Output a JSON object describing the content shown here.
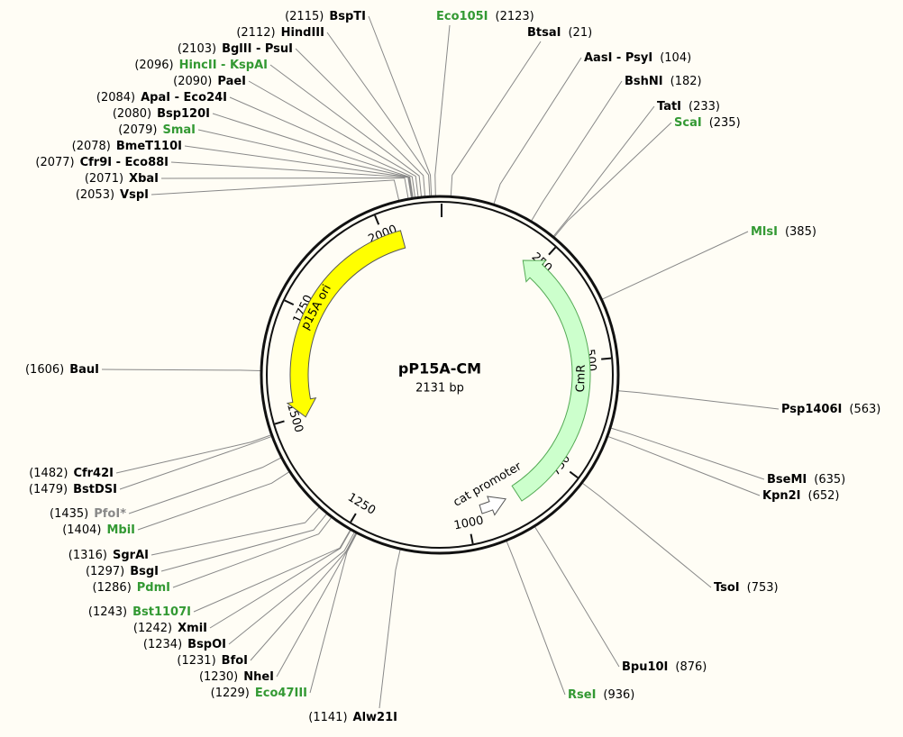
{
  "map": {
    "title": "pP15A-CM",
    "length": {
      "value": 2131,
      "label": "2131 bp"
    },
    "ticks": [
      250,
      500,
      750,
      1000,
      1250,
      1500,
      1750,
      2000
    ],
    "features": [
      {
        "name": "p15A ori",
        "start": 2041,
        "end": 1495,
        "color": "#ffff00"
      },
      {
        "name": "CmR",
        "start": 870,
        "end": 213,
        "color": "#ccffcc"
      },
      {
        "name": "cat promoter",
        "start": 965,
        "end": 900,
        "color": "#ffffff"
      }
    ],
    "sites": [
      {
        "name": "BspTI",
        "position": {
          "value": 2115,
          "label": "(2115)"
        },
        "color": "#000000"
      },
      {
        "name": "HindIII",
        "position": {
          "value": 2112,
          "label": "(2112)"
        },
        "color": "#000000"
      },
      {
        "name": "BglII - PsuI",
        "position": {
          "value": 2103,
          "label": "(2103)"
        },
        "color": "#000000"
      },
      {
        "name": "HincII - KspAI",
        "position": {
          "value": 2096,
          "label": "(2096)"
        },
        "color": "#339933"
      },
      {
        "name": "PaeI",
        "position": {
          "value": 2090,
          "label": "(2090)"
        },
        "color": "#000000"
      },
      {
        "name": "ApaI - Eco24I",
        "position": {
          "value": 2084,
          "label": "(2084)"
        },
        "color": "#000000"
      },
      {
        "name": "Bsp120I",
        "position": {
          "value": 2080,
          "label": "(2080)"
        },
        "color": "#000000"
      },
      {
        "name": "SmaI",
        "position": {
          "value": 2079,
          "label": "(2079)"
        },
        "color": "#339933"
      },
      {
        "name": "BmeT110I",
        "position": {
          "value": 2078,
          "label": "(2078)"
        },
        "color": "#000000"
      },
      {
        "name": "Cfr9I - Eco88I",
        "position": {
          "value": 2077,
          "label": "(2077)"
        },
        "color": "#000000"
      },
      {
        "name": "XbaI",
        "position": {
          "value": 2071,
          "label": "(2071)"
        },
        "color": "#000000"
      },
      {
        "name": "VspI",
        "position": {
          "value": 2053,
          "label": "(2053)"
        },
        "color": "#000000"
      },
      {
        "name": "BauI",
        "position": {
          "value": 1606,
          "label": "(1606)"
        },
        "color": "#000000"
      },
      {
        "name": "Cfr42I",
        "position": {
          "value": 1482,
          "label": "(1482)"
        },
        "color": "#000000"
      },
      {
        "name": "BstDSI",
        "position": {
          "value": 1479,
          "label": "(1479)"
        },
        "color": "#000000"
      },
      {
        "name": "PfoI*",
        "position": {
          "value": 1435,
          "label": "(1435)"
        },
        "color": "#888888"
      },
      {
        "name": "MbiI",
        "position": {
          "value": 1404,
          "label": "(1404)"
        },
        "color": "#339933"
      },
      {
        "name": "SgrAI",
        "position": {
          "value": 1316,
          "label": "(1316)"
        },
        "color": "#000000"
      },
      {
        "name": "BsgI",
        "position": {
          "value": 1297,
          "label": "(1297)"
        },
        "color": "#000000"
      },
      {
        "name": "PdmI",
        "position": {
          "value": 1286,
          "label": "(1286)"
        },
        "color": "#339933"
      },
      {
        "name": "Bst1107I",
        "position": {
          "value": 1243,
          "label": "(1243)"
        },
        "color": "#339933"
      },
      {
        "name": "XmiI",
        "position": {
          "value": 1242,
          "label": "(1242)"
        },
        "color": "#000000"
      },
      {
        "name": "BspOI",
        "position": {
          "value": 1234,
          "label": "(1234)"
        },
        "color": "#000000"
      },
      {
        "name": "BfoI",
        "position": {
          "value": 1231,
          "label": "(1231)"
        },
        "color": "#000000"
      },
      {
        "name": "NheI",
        "position": {
          "value": 1230,
          "label": "(1230)"
        },
        "color": "#000000"
      },
      {
        "name": "Eco47III",
        "position": {
          "value": 1229,
          "label": "(1229)"
        },
        "color": "#339933"
      },
      {
        "name": "Alw21I",
        "position": {
          "value": 1141,
          "label": "(1141)"
        },
        "color": "#000000"
      },
      {
        "name": "Eco105I",
        "position": {
          "value": 2123,
          "label": "(2123)"
        },
        "color": "#339933"
      },
      {
        "name": "BtsaI",
        "position": {
          "value": 21,
          "label": "(21)"
        },
        "color": "#000000"
      },
      {
        "name": "AasI - PsyI",
        "position": {
          "value": 104,
          "label": "(104)"
        },
        "color": "#000000"
      },
      {
        "name": "BshNI",
        "position": {
          "value": 182,
          "label": "(182)"
        },
        "color": "#000000"
      },
      {
        "name": "TatI",
        "position": {
          "value": 233,
          "label": "(233)"
        },
        "color": "#000000"
      },
      {
        "name": "ScaI",
        "position": {
          "value": 235,
          "label": "(235)"
        },
        "color": "#339933"
      },
      {
        "name": "MlsI",
        "position": {
          "value": 385,
          "label": "(385)"
        },
        "color": "#339933"
      },
      {
        "name": "Psp1406I",
        "position": {
          "value": 563,
          "label": "(563)"
        },
        "color": "#000000"
      },
      {
        "name": "BseMI",
        "position": {
          "value": 635,
          "label": "(635)"
        },
        "color": "#000000"
      },
      {
        "name": "Kpn2I",
        "position": {
          "value": 652,
          "label": "(652)"
        },
        "color": "#000000"
      },
      {
        "name": "TsoI",
        "position": {
          "value": 753,
          "label": "(753)"
        },
        "color": "#000000"
      },
      {
        "name": "Bpu10I",
        "position": {
          "value": 876,
          "label": "(876)"
        },
        "color": "#000000"
      },
      {
        "name": "RseI",
        "position": {
          "value": 936,
          "label": "(936)"
        },
        "color": "#339933"
      }
    ]
  }
}
